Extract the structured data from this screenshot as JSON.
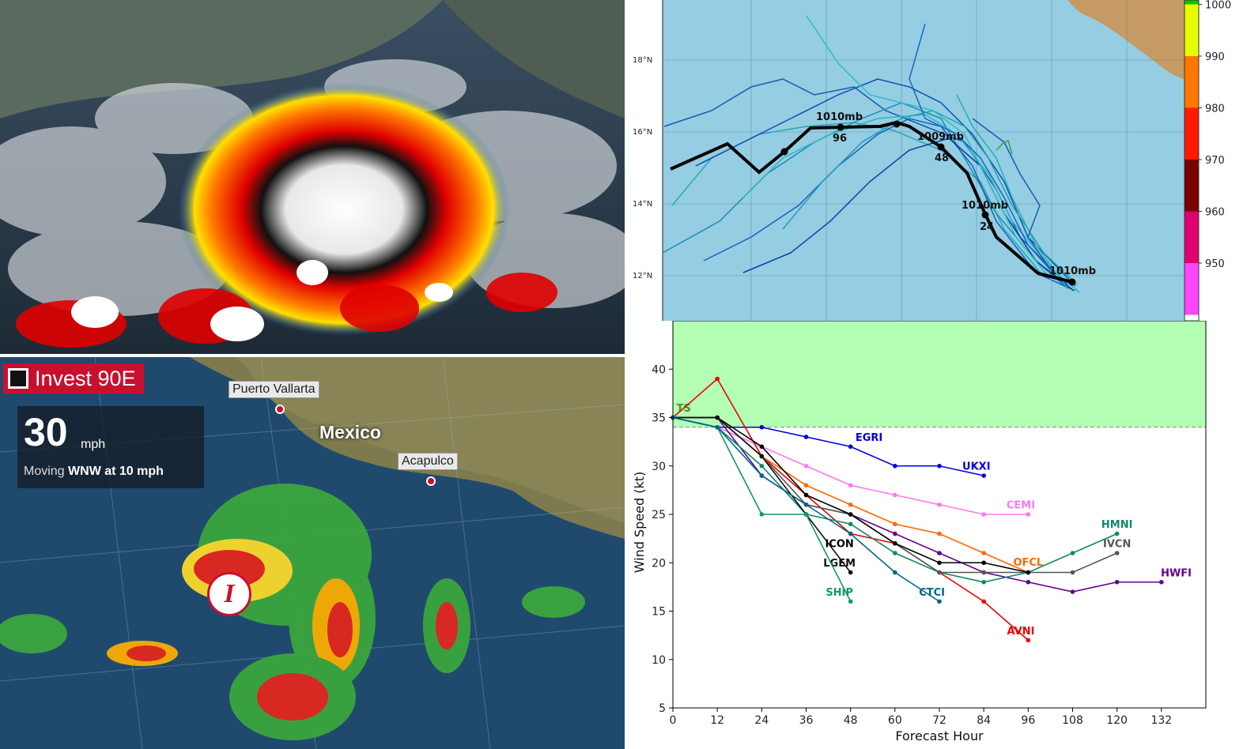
{
  "satellite_panel": {},
  "radar_panel": {
    "storm_name": "Invest 90E",
    "wind_value": "30",
    "wind_unit": "mph",
    "moving_prefix": "Moving",
    "moving_value": "WNW at 10 mph",
    "cities": [
      "Puerto Vallarta",
      "Acapulco"
    ],
    "country": "Mexico",
    "storm_symbol": "I"
  },
  "track_panel": {
    "lat_labels": [
      "18°N",
      "16°N",
      "14°N",
      "12°N"
    ],
    "colorbar": {
      "labels": [
        "1000",
        "990",
        "980",
        "970",
        "960",
        "950"
      ],
      "colors": [
        "#00c800",
        "#e6ff00",
        "#ff7700",
        "#ff1a00",
        "#7a0000",
        "#e0006e",
        "#ff44ff"
      ]
    },
    "track_labels": [
      {
        "pressure": "1010mb",
        "hour": "96"
      },
      {
        "pressure": "1009mb",
        "hour": "48"
      },
      {
        "pressure": "1010mb",
        "hour": "24"
      },
      {
        "pressure": "1010mb",
        "hour": ""
      }
    ],
    "ocean_color": "#95cde2",
    "land_color": "#c69a64"
  },
  "chart_data": {
    "type": "line",
    "xlabel": "Forecast Hour",
    "ylabel": "Wind Speed (kt)",
    "xlim": [
      0,
      144
    ],
    "ylim": [
      5,
      45
    ],
    "x_ticks": [
      0,
      12,
      24,
      36,
      48,
      60,
      72,
      84,
      96,
      108,
      120,
      132
    ],
    "y_ticks": [
      5,
      10,
      15,
      20,
      25,
      30,
      35,
      40
    ],
    "threshold": {
      "label": "TS",
      "value": 34,
      "color": "#b3ffb3"
    },
    "series": [
      {
        "name": "EGRI",
        "color": "#0000dd",
        "x": [
          0,
          12,
          24,
          36,
          48,
          60,
          72,
          84
        ],
        "y": [
          35,
          34,
          34,
          33,
          32,
          30,
          30,
          29
        ]
      },
      {
        "name": "UKXI",
        "color": "#0000dd",
        "x": [],
        "y": []
      },
      {
        "name": "CEMI",
        "color": "#ff77ee",
        "x": [
          0,
          12,
          24,
          36,
          48,
          60,
          72,
          84,
          96
        ],
        "y": [
          35,
          34,
          32,
          30,
          28,
          27,
          26,
          25,
          25
        ]
      },
      {
        "name": "AVNI",
        "color": "#ee0000",
        "x": [
          0,
          12,
          24,
          36,
          48,
          60,
          72,
          84,
          96
        ],
        "y": [
          35,
          39,
          31,
          27,
          23,
          22,
          19,
          16,
          12
        ]
      },
      {
        "name": "OFCL",
        "color": "#ff6600",
        "x": [
          0,
          12,
          24,
          36,
          48,
          60,
          72,
          84,
          96
        ],
        "y": [
          35,
          35,
          31,
          28,
          26,
          24,
          23,
          21,
          19
        ]
      },
      {
        "name": "HWFI",
        "color": "#66008a",
        "x": [
          0,
          12,
          24,
          36,
          48,
          60,
          72,
          84,
          96,
          108,
          120,
          132
        ],
        "y": [
          35,
          35,
          29,
          26,
          25,
          23,
          21,
          19,
          18,
          17,
          18,
          18
        ]
      },
      {
        "name": "HMNI",
        "color": "#118866",
        "x": [
          0,
          12,
          24,
          36,
          48,
          60,
          72,
          84,
          96,
          108,
          120
        ],
        "y": [
          35,
          34,
          30,
          25,
          24,
          21,
          19,
          18,
          19,
          21,
          23
        ]
      },
      {
        "name": "IVCN",
        "color": "#555555",
        "x": [
          0,
          12,
          24,
          36,
          48,
          60,
          72,
          84,
          96,
          108,
          120
        ],
        "y": [
          35,
          35,
          31,
          26,
          25,
          22,
          19,
          19,
          19,
          19,
          21
        ]
      },
      {
        "name": "ICON",
        "color": "#000000",
        "x": [
          0,
          12,
          24,
          36,
          48,
          60,
          72,
          84,
          96
        ],
        "y": [
          35,
          35,
          32,
          27,
          25,
          22,
          20,
          20,
          19
        ]
      },
      {
        "name": "LGEM",
        "color": "#111111",
        "x": [
          0,
          12,
          24,
          36,
          48
        ],
        "y": [
          35,
          35,
          31,
          25,
          19
        ]
      },
      {
        "name": "SHIP",
        "color": "#119966",
        "x": [
          0,
          12,
          24,
          36,
          48
        ],
        "y": [
          35,
          34,
          25,
          25,
          16
        ]
      },
      {
        "name": "CTCI",
        "color": "#006688",
        "x": [
          0,
          12,
          24,
          36,
          48,
          60,
          72
        ],
        "y": [
          35,
          34,
          29,
          26,
          23,
          19,
          16
        ]
      }
    ]
  }
}
